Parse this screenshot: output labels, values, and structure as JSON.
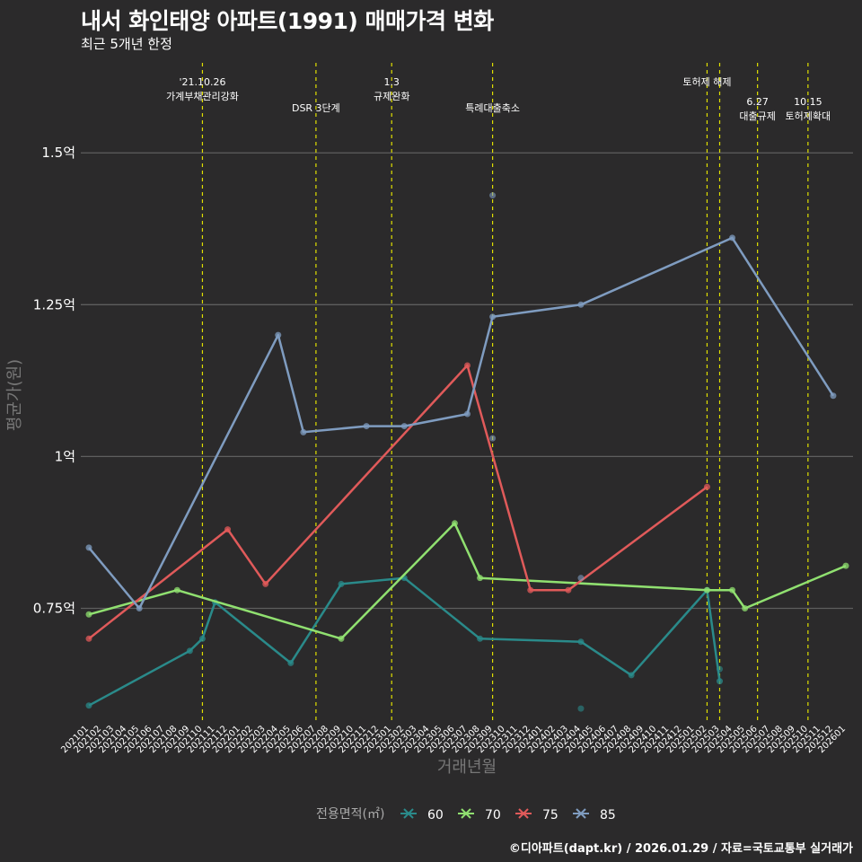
{
  "chart_data": {
    "type": "line",
    "title": "내서 화인태양 아파트(1991) 매매가격 변화",
    "subtitle": "최근 5개년 한정",
    "caption": "©디아파트(dapt.kr) / 2026.01.29 / 자료=국토교통부 실거래가",
    "xlabel": "거래년월",
    "ylabel": "평균가(원)",
    "ylim": [
      0.56,
      1.66
    ],
    "yticks": [
      {
        "value": 0.75,
        "label": "0.75억"
      },
      {
        "value": 1.0,
        "label": "1억"
      },
      {
        "value": 1.25,
        "label": "1.25억"
      },
      {
        "value": 1.5,
        "label": "1.5억"
      }
    ],
    "categories": [
      "202101",
      "202102",
      "202103",
      "202104",
      "202105",
      "202106",
      "202107",
      "202108",
      "202109",
      "202110",
      "202111",
      "202112",
      "202201",
      "202202",
      "202203",
      "202204",
      "202205",
      "202206",
      "202207",
      "202208",
      "202209",
      "202210",
      "202211",
      "202212",
      "202301",
      "202302",
      "202303",
      "202304",
      "202305",
      "202306",
      "202307",
      "202308",
      "202309",
      "202310",
      "202311",
      "202312",
      "202401",
      "202402",
      "202403",
      "202404",
      "202405",
      "202406",
      "202407",
      "202408",
      "202409",
      "202410",
      "202411",
      "202412",
      "202501",
      "202502",
      "202503",
      "202504",
      "202505",
      "202506",
      "202507",
      "202508",
      "202509",
      "202510",
      "202511",
      "202512",
      "202601"
    ],
    "legend_title": "전용면적(㎡)",
    "series": [
      {
        "name": "60",
        "color": "#2a8a8a",
        "points": [
          [
            "202101",
            0.59
          ],
          [
            "202109",
            0.68
          ],
          [
            "202110",
            0.7
          ],
          [
            "202111",
            0.76
          ],
          [
            "202205",
            0.66
          ],
          [
            "202209",
            0.79
          ],
          [
            "202302",
            0.8
          ],
          [
            "202308",
            0.7
          ],
          [
            "202404",
            0.695
          ],
          [
            "202408",
            0.64
          ],
          [
            "202502",
            0.78
          ],
          [
            "202503",
            0.63
          ]
        ],
        "extra": [
          [
            "202404",
            0.585
          ],
          [
            "202503",
            0.65
          ]
        ]
      },
      {
        "name": "70",
        "color": "#90e070",
        "points": [
          [
            "202101",
            0.74
          ],
          [
            "202108",
            0.78
          ],
          [
            "202209",
            0.7
          ],
          [
            "202306",
            0.89
          ],
          [
            "202308",
            0.8
          ],
          [
            "202502",
            0.78
          ],
          [
            "202504",
            0.78
          ],
          [
            "202505",
            0.75
          ],
          [
            "202601",
            0.82
          ]
        ],
        "extra": []
      },
      {
        "name": "75",
        "color": "#e05a5a",
        "points": [
          [
            "202101",
            0.7
          ],
          [
            "202112",
            0.88
          ],
          [
            "202203",
            0.79
          ],
          [
            "202307",
            1.15
          ],
          [
            "202312",
            0.78
          ],
          [
            "202403",
            0.78
          ],
          [
            "202502",
            0.95
          ]
        ],
        "extra": []
      },
      {
        "name": "85",
        "color": "#7f9cc0",
        "points": [
          [
            "202101",
            0.85
          ],
          [
            "202105",
            0.75
          ],
          [
            "202204",
            1.2
          ],
          [
            "202206",
            1.04
          ],
          [
            "202211",
            1.05
          ],
          [
            "202302",
            1.05
          ],
          [
            "202307",
            1.07
          ],
          [
            "202309",
            1.23
          ],
          [
            "202404",
            1.25
          ],
          [
            "202504",
            1.36
          ],
          [
            "202512",
            1.1
          ]
        ],
        "extra": [
          [
            "202309",
            1.43
          ],
          [
            "202309",
            1.03
          ],
          [
            "202404",
            0.8
          ]
        ]
      }
    ],
    "events": [
      {
        "month": "202110",
        "lines": [
          "'21.10.26",
          "가계부채관리강화"
        ],
        "row": 0
      },
      {
        "month": "202207",
        "lines": [
          "DSR 3단계"
        ],
        "row": 1
      },
      {
        "month": "202301",
        "lines": [
          "1.3",
          "규제완화"
        ],
        "row": 0
      },
      {
        "month": "202309",
        "lines": [
          "특례대출축소"
        ],
        "row": 1
      },
      {
        "month": "202502",
        "lines": [
          "토허제 해제"
        ],
        "row": 0
      },
      {
        "month": "202503",
        "lines": [],
        "row": 0
      },
      {
        "month": "202506",
        "lines": [
          "6.27",
          "대출규제"
        ],
        "row": 1
      },
      {
        "month": "202510",
        "lines": [
          "10.15",
          "토허제확대"
        ],
        "row": 1
      }
    ]
  }
}
